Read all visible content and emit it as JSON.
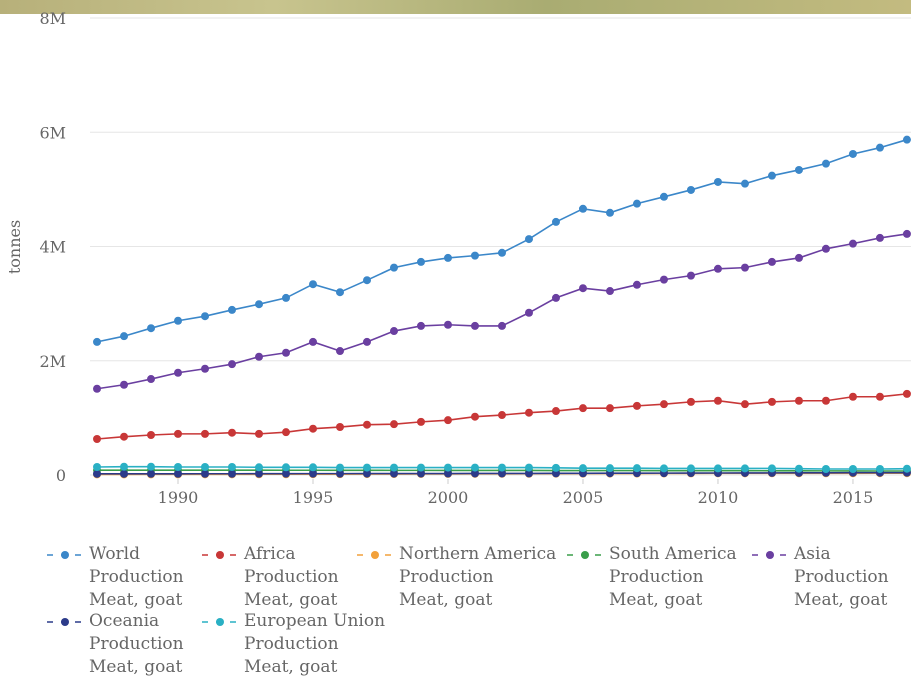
{
  "chart_data": {
    "type": "line",
    "y_label": "tonnes",
    "x": [
      1987,
      1988,
      1989,
      1990,
      1991,
      1992,
      1993,
      1994,
      1995,
      1996,
      1997,
      1998,
      1999,
      2000,
      2001,
      2002,
      2003,
      2004,
      2005,
      2006,
      2007,
      2008,
      2009,
      2010,
      2011,
      2012,
      2013,
      2014,
      2015,
      2016,
      2017
    ],
    "xlim": [
      1986.74,
      2017.15
    ],
    "xticks": [
      1990,
      1995,
      2000,
      2005,
      2010,
      2015
    ],
    "ylim": [
      0,
      8000000
    ],
    "yticks": [
      0,
      {
        "value": 2000000,
        "label": "2M"
      },
      {
        "value": 4000000,
        "label": "4M"
      },
      {
        "value": 6000000,
        "label": "6M"
      },
      {
        "value": 8000000,
        "label": "8M"
      }
    ],
    "grid": true,
    "legend": "bottom",
    "series": [
      {
        "name": "World\nProduction\nMeat, goat",
        "color": "#3b87c9",
        "values": [
          2330000,
          2430000,
          2570000,
          2700000,
          2780000,
          2890000,
          2990000,
          3100000,
          3340000,
          3200000,
          3410000,
          3630000,
          3730000,
          3800000,
          3840000,
          3890000,
          4130000,
          4430000,
          4660000,
          4590000,
          4750000,
          4870000,
          4990000,
          5130000,
          5100000,
          5240000,
          5340000,
          5450000,
          5620000,
          5730000,
          5870000
        ]
      },
      {
        "name": "Africa\nProduction\nMeat, goat",
        "color": "#c83737",
        "values": [
          630000,
          670000,
          700000,
          720000,
          720000,
          740000,
          720000,
          750000,
          810000,
          840000,
          880000,
          890000,
          930000,
          960000,
          1020000,
          1050000,
          1090000,
          1120000,
          1170000,
          1170000,
          1210000,
          1240000,
          1280000,
          1300000,
          1240000,
          1280000,
          1300000,
          1300000,
          1370000,
          1370000,
          1420000
        ]
      },
      {
        "name": "Northern America\nProduction\nMeat, goat",
        "color": "#f2a13b",
        "values": [
          10000,
          10000,
          11000,
          11000,
          12000,
          12000,
          13000,
          13000,
          14000,
          15000,
          16000,
          17000,
          18000,
          19000,
          20000,
          21000,
          22000,
          23000,
          24000,
          25000,
          26000,
          27000,
          28000,
          29000,
          29000,
          30000,
          30000,
          30000,
          30000,
          31000,
          31000
        ]
      },
      {
        "name": "South America\nProduction\nMeat, goat",
        "color": "#3a9e4a",
        "values": [
          85000,
          85000,
          85000,
          85000,
          84000,
          84000,
          84000,
          83000,
          83000,
          82000,
          82000,
          81000,
          81000,
          80000,
          80000,
          79000,
          79000,
          78000,
          78000,
          77000,
          77000,
          76000,
          76000,
          75000,
          75000,
          74000,
          73000,
          72000,
          71000,
          70000,
          70000
        ]
      },
      {
        "name": "Asia\nProduction\nMeat, goat",
        "color": "#6a3fa0",
        "values": [
          1510000,
          1580000,
          1680000,
          1790000,
          1860000,
          1940000,
          2070000,
          2140000,
          2330000,
          2170000,
          2330000,
          2520000,
          2610000,
          2630000,
          2610000,
          2610000,
          2840000,
          3100000,
          3270000,
          3220000,
          3330000,
          3420000,
          3490000,
          3610000,
          3630000,
          3730000,
          3800000,
          3960000,
          4050000,
          4150000,
          4220000
        ]
      },
      {
        "name": "Oceania\nProduction\nMeat, goat",
        "color": "#2c3b8a",
        "values": [
          20000,
          20000,
          21000,
          21000,
          22000,
          22000,
          23000,
          23000,
          24000,
          24000,
          25000,
          25000,
          26000,
          26000,
          27000,
          27000,
          28000,
          29000,
          30000,
          31000,
          32000,
          33000,
          34000,
          35000,
          36000,
          37000,
          38000,
          39000,
          40000,
          40000,
          41000
        ]
      },
      {
        "name": "European Union\nProduction\nMeat, goat",
        "color": "#2ab0c4",
        "values": [
          140000,
          145000,
          145000,
          140000,
          140000,
          140000,
          135000,
          135000,
          135000,
          130000,
          130000,
          130000,
          130000,
          130000,
          130000,
          130000,
          130000,
          125000,
          120000,
          120000,
          120000,
          115000,
          115000,
          115000,
          115000,
          115000,
          110000,
          105000,
          105000,
          105000,
          110000
        ]
      }
    ]
  }
}
